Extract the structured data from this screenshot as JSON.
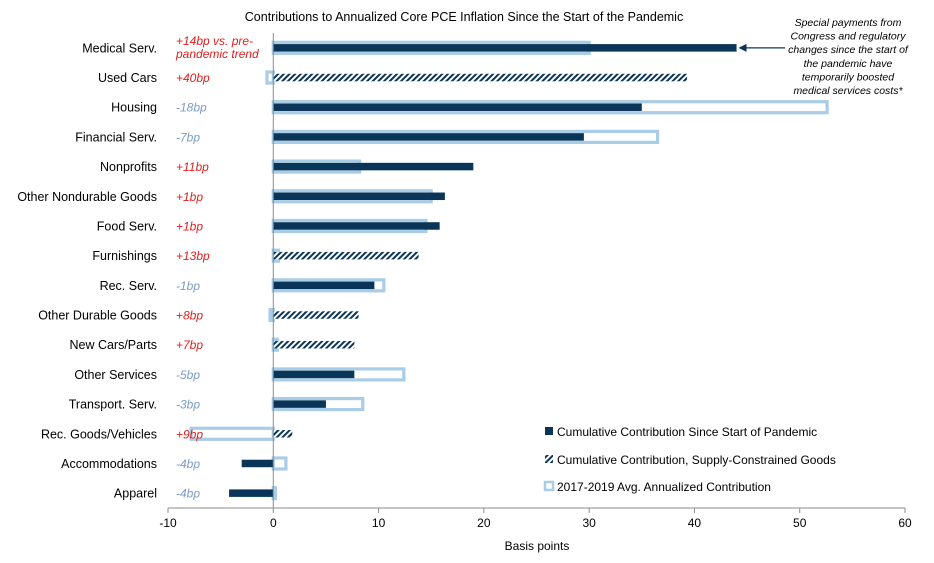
{
  "chart_data": {
    "type": "bar",
    "orientation": "horizontal",
    "title": "Contributions to Annualized Core PCE Inflation Since the Start of the Pandemic",
    "xlabel": "Basis points",
    "ylabel": "",
    "xlim": [
      -10,
      60
    ],
    "x_ticks": [
      "-10",
      "0",
      "10",
      "20",
      "30",
      "40",
      "50",
      "60"
    ],
    "grid": false,
    "legend_position": "bottom-right",
    "colors": {
      "cumulative": "#0b3558",
      "avg_fill": "#ffffff",
      "avg_outline": "#a9cde6",
      "positive_text": "#e02020",
      "negative_text": "#7a9cc6"
    },
    "series": [
      {
        "name": "Cumulative Contribution Since Start of Pandemic",
        "style": "solid"
      },
      {
        "name": "Cumulative Contribution, Supply-Constrained Goods",
        "style": "hatched"
      },
      {
        "name": "2017-2019 Avg. Annualized Contribution",
        "style": "outline"
      }
    ],
    "categories": [
      {
        "label": "Medical Serv.",
        "cumulative": 44,
        "supply_constrained": false,
        "avg": 30,
        "diff": "+14bp vs. pre-pandemic trend",
        "diff_lines": [
          "+14bp vs. pre-",
          "pandemic trend"
        ],
        "diff_sign": "positive"
      },
      {
        "label": "Used Cars",
        "cumulative": 39.3,
        "supply_constrained": true,
        "avg": -0.6,
        "diff": "+40bp",
        "diff_lines": [
          "+40bp"
        ],
        "diff_sign": "positive"
      },
      {
        "label": "Housing",
        "cumulative": 35,
        "supply_constrained": false,
        "avg": 52.6,
        "diff": "-18bp",
        "diff_lines": [
          "-18bp"
        ],
        "diff_sign": "negative"
      },
      {
        "label": "Financial Serv.",
        "cumulative": 29.5,
        "supply_constrained": false,
        "avg": 36.5,
        "diff": "-7bp",
        "diff_lines": [
          "-7bp"
        ],
        "diff_sign": "negative"
      },
      {
        "label": "Nonprofits",
        "cumulative": 19,
        "supply_constrained": false,
        "avg": 8.2,
        "diff": "+11bp",
        "diff_lines": [
          "+11bp"
        ],
        "diff_sign": "positive"
      },
      {
        "label": "Other Nondurable Goods",
        "cumulative": 16.3,
        "supply_constrained": false,
        "avg": 15,
        "diff": "+1bp",
        "diff_lines": [
          "+1bp"
        ],
        "diff_sign": "positive"
      },
      {
        "label": "Food Serv.",
        "cumulative": 15.8,
        "supply_constrained": false,
        "avg": 14.5,
        "diff": "+1bp",
        "diff_lines": [
          "+1bp"
        ],
        "diff_sign": "positive"
      },
      {
        "label": "Furnishings",
        "cumulative": 13.8,
        "supply_constrained": true,
        "avg": 0.5,
        "diff": "+13bp",
        "diff_lines": [
          "+13bp"
        ],
        "diff_sign": "positive"
      },
      {
        "label": "Rec. Serv.",
        "cumulative": 9.6,
        "supply_constrained": false,
        "avg": 10.5,
        "diff": "-1bp",
        "diff_lines": [
          "-1bp"
        ],
        "diff_sign": "negative"
      },
      {
        "label": "Other Durable Goods",
        "cumulative": 8.1,
        "supply_constrained": true,
        "avg": -0.3,
        "diff": "+8bp",
        "diff_lines": [
          "+8bp"
        ],
        "diff_sign": "positive"
      },
      {
        "label": "New Cars/Parts",
        "cumulative": 7.7,
        "supply_constrained": true,
        "avg": 0.4,
        "diff": "+7bp",
        "diff_lines": [
          "+7bp"
        ],
        "diff_sign": "positive"
      },
      {
        "label": "Other Services",
        "cumulative": 7.7,
        "supply_constrained": false,
        "avg": 12.4,
        "diff": "-5bp",
        "diff_lines": [
          "-5bp"
        ],
        "diff_sign": "negative"
      },
      {
        "label": "Transport. Serv.",
        "cumulative": 5,
        "supply_constrained": false,
        "avg": 8.5,
        "diff": "-3bp",
        "diff_lines": [
          "-3bp"
        ],
        "diff_sign": "negative"
      },
      {
        "label": "Rec. Goods/Vehicles",
        "cumulative": 1.8,
        "supply_constrained": true,
        "avg": -7.8,
        "diff": "+9bp",
        "diff_lines": [
          "+9bp"
        ],
        "diff_sign": "positive"
      },
      {
        "label": "Accommodations",
        "cumulative": -3,
        "supply_constrained": false,
        "avg": 1.2,
        "diff": "-4bp",
        "diff_lines": [
          "-4bp"
        ],
        "diff_sign": "negative"
      },
      {
        "label": "Apparel",
        "cumulative": -4.2,
        "supply_constrained": false,
        "avg": 0.2,
        "diff": "-4bp",
        "diff_lines": [
          "-4bp"
        ],
        "diff_sign": "negative"
      }
    ],
    "annotation": {
      "text": "Special payments from Congress and regulatory changes since the start of the pandemic have temporarily boosted medical services costs*",
      "lines": [
        "Special payments  from",
        "Congress and regulatory",
        "changes since the start of",
        "the pandemic have",
        "temporarily boosted",
        "medical services costs*"
      ],
      "points_to": "Medical Serv."
    }
  }
}
